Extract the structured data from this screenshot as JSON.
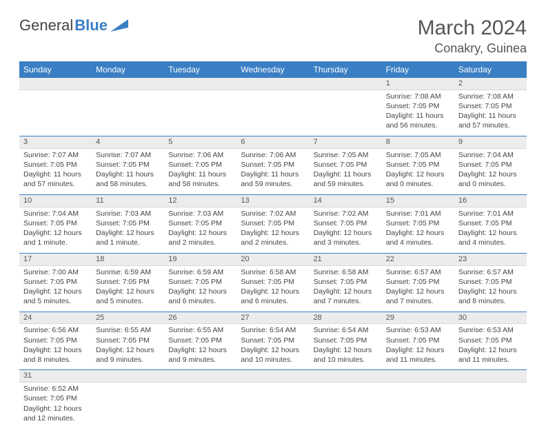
{
  "brand": {
    "part1": "General",
    "part2": "Blue"
  },
  "title": {
    "month": "March 2024",
    "location": "Conakry, Guinea"
  },
  "colors": {
    "accent": "#3a7fc4",
    "gray": "#ececec"
  },
  "weekdays": [
    "Sunday",
    "Monday",
    "Tuesday",
    "Wednesday",
    "Thursday",
    "Friday",
    "Saturday"
  ],
  "weeks": [
    [
      null,
      null,
      null,
      null,
      null,
      {
        "n": "1",
        "sr": "Sunrise: 7:08 AM",
        "ss": "Sunset: 7:05 PM",
        "dl": "Daylight: 11 hours and 56 minutes."
      },
      {
        "n": "2",
        "sr": "Sunrise: 7:08 AM",
        "ss": "Sunset: 7:05 PM",
        "dl": "Daylight: 11 hours and 57 minutes."
      }
    ],
    [
      {
        "n": "3",
        "sr": "Sunrise: 7:07 AM",
        "ss": "Sunset: 7:05 PM",
        "dl": "Daylight: 11 hours and 57 minutes."
      },
      {
        "n": "4",
        "sr": "Sunrise: 7:07 AM",
        "ss": "Sunset: 7:05 PM",
        "dl": "Daylight: 11 hours and 58 minutes."
      },
      {
        "n": "5",
        "sr": "Sunrise: 7:06 AM",
        "ss": "Sunset: 7:05 PM",
        "dl": "Daylight: 11 hours and 58 minutes."
      },
      {
        "n": "6",
        "sr": "Sunrise: 7:06 AM",
        "ss": "Sunset: 7:05 PM",
        "dl": "Daylight: 11 hours and 59 minutes."
      },
      {
        "n": "7",
        "sr": "Sunrise: 7:05 AM",
        "ss": "Sunset: 7:05 PM",
        "dl": "Daylight: 11 hours and 59 minutes."
      },
      {
        "n": "8",
        "sr": "Sunrise: 7:05 AM",
        "ss": "Sunset: 7:05 PM",
        "dl": "Daylight: 12 hours and 0 minutes."
      },
      {
        "n": "9",
        "sr": "Sunrise: 7:04 AM",
        "ss": "Sunset: 7:05 PM",
        "dl": "Daylight: 12 hours and 0 minutes."
      }
    ],
    [
      {
        "n": "10",
        "sr": "Sunrise: 7:04 AM",
        "ss": "Sunset: 7:05 PM",
        "dl": "Daylight: 12 hours and 1 minute."
      },
      {
        "n": "11",
        "sr": "Sunrise: 7:03 AM",
        "ss": "Sunset: 7:05 PM",
        "dl": "Daylight: 12 hours and 1 minute."
      },
      {
        "n": "12",
        "sr": "Sunrise: 7:03 AM",
        "ss": "Sunset: 7:05 PM",
        "dl": "Daylight: 12 hours and 2 minutes."
      },
      {
        "n": "13",
        "sr": "Sunrise: 7:02 AM",
        "ss": "Sunset: 7:05 PM",
        "dl": "Daylight: 12 hours and 2 minutes."
      },
      {
        "n": "14",
        "sr": "Sunrise: 7:02 AM",
        "ss": "Sunset: 7:05 PM",
        "dl": "Daylight: 12 hours and 3 minutes."
      },
      {
        "n": "15",
        "sr": "Sunrise: 7:01 AM",
        "ss": "Sunset: 7:05 PM",
        "dl": "Daylight: 12 hours and 4 minutes."
      },
      {
        "n": "16",
        "sr": "Sunrise: 7:01 AM",
        "ss": "Sunset: 7:05 PM",
        "dl": "Daylight: 12 hours and 4 minutes."
      }
    ],
    [
      {
        "n": "17",
        "sr": "Sunrise: 7:00 AM",
        "ss": "Sunset: 7:05 PM",
        "dl": "Daylight: 12 hours and 5 minutes."
      },
      {
        "n": "18",
        "sr": "Sunrise: 6:59 AM",
        "ss": "Sunset: 7:05 PM",
        "dl": "Daylight: 12 hours and 5 minutes."
      },
      {
        "n": "19",
        "sr": "Sunrise: 6:59 AM",
        "ss": "Sunset: 7:05 PM",
        "dl": "Daylight: 12 hours and 6 minutes."
      },
      {
        "n": "20",
        "sr": "Sunrise: 6:58 AM",
        "ss": "Sunset: 7:05 PM",
        "dl": "Daylight: 12 hours and 6 minutes."
      },
      {
        "n": "21",
        "sr": "Sunrise: 6:58 AM",
        "ss": "Sunset: 7:05 PM",
        "dl": "Daylight: 12 hours and 7 minutes."
      },
      {
        "n": "22",
        "sr": "Sunrise: 6:57 AM",
        "ss": "Sunset: 7:05 PM",
        "dl": "Daylight: 12 hours and 7 minutes."
      },
      {
        "n": "23",
        "sr": "Sunrise: 6:57 AM",
        "ss": "Sunset: 7:05 PM",
        "dl": "Daylight: 12 hours and 8 minutes."
      }
    ],
    [
      {
        "n": "24",
        "sr": "Sunrise: 6:56 AM",
        "ss": "Sunset: 7:05 PM",
        "dl": "Daylight: 12 hours and 8 minutes."
      },
      {
        "n": "25",
        "sr": "Sunrise: 6:55 AM",
        "ss": "Sunset: 7:05 PM",
        "dl": "Daylight: 12 hours and 9 minutes."
      },
      {
        "n": "26",
        "sr": "Sunrise: 6:55 AM",
        "ss": "Sunset: 7:05 PM",
        "dl": "Daylight: 12 hours and 9 minutes."
      },
      {
        "n": "27",
        "sr": "Sunrise: 6:54 AM",
        "ss": "Sunset: 7:05 PM",
        "dl": "Daylight: 12 hours and 10 minutes."
      },
      {
        "n": "28",
        "sr": "Sunrise: 6:54 AM",
        "ss": "Sunset: 7:05 PM",
        "dl": "Daylight: 12 hours and 10 minutes."
      },
      {
        "n": "29",
        "sr": "Sunrise: 6:53 AM",
        "ss": "Sunset: 7:05 PM",
        "dl": "Daylight: 12 hours and 11 minutes."
      },
      {
        "n": "30",
        "sr": "Sunrise: 6:53 AM",
        "ss": "Sunset: 7:05 PM",
        "dl": "Daylight: 12 hours and 11 minutes."
      }
    ],
    [
      {
        "n": "31",
        "sr": "Sunrise: 6:52 AM",
        "ss": "Sunset: 7:05 PM",
        "dl": "Daylight: 12 hours and 12 minutes."
      },
      null,
      null,
      null,
      null,
      null,
      null
    ]
  ]
}
